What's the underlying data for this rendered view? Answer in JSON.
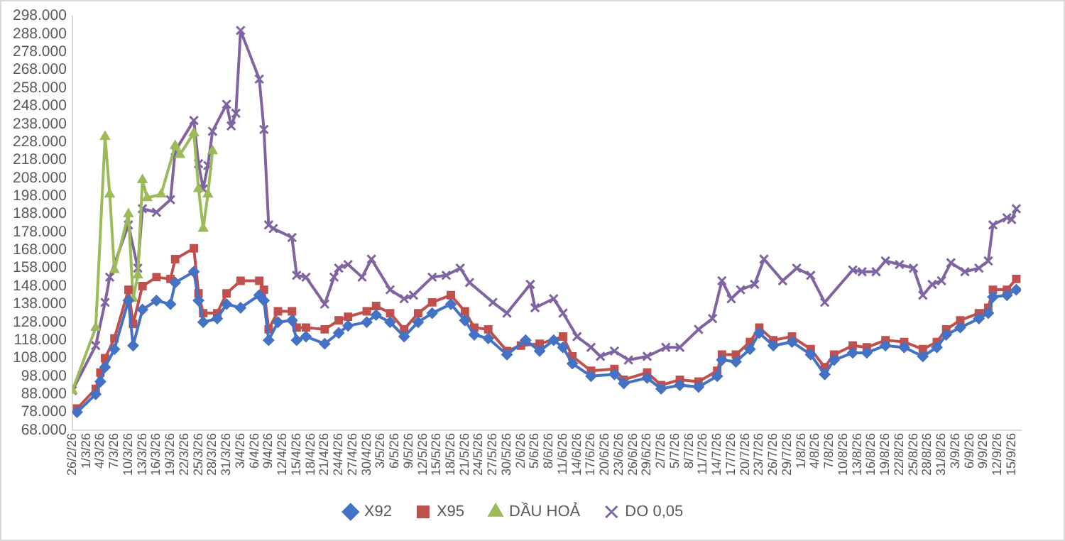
{
  "chart_data": {
    "type": "line",
    "legend": "bottom",
    "grid": false,
    "xlim": [
      "--02-26",
      "--09-17"
    ],
    "xticks": [
      {
        "value": "--02-26",
        "label": "26/2/26"
      },
      {
        "value": "--03-01",
        "label": "1/3/26"
      },
      {
        "value": "--03-04",
        "label": "4/3/26"
      },
      {
        "value": "--03-07",
        "label": "7/3/26"
      },
      {
        "value": "--03-10",
        "label": "10/3/26"
      },
      {
        "value": "--03-13",
        "label": "13/3/26"
      },
      {
        "value": "--03-16",
        "label": "16/3/26"
      },
      {
        "value": "--03-19",
        "label": "19/3/26"
      },
      {
        "value": "--03-22",
        "label": "22/3/26"
      },
      {
        "value": "--03-25",
        "label": "25/3/26"
      },
      {
        "value": "--03-28",
        "label": "28/3/26"
      },
      {
        "value": "--03-31",
        "label": "31/3/26"
      },
      {
        "value": "--04-03",
        "label": "3/4/26"
      },
      {
        "value": "--04-06",
        "label": "6/4/26"
      },
      {
        "value": "--04-09",
        "label": "9/4/26"
      },
      {
        "value": "--04-12",
        "label": "12/4/26"
      },
      {
        "value": "--04-15",
        "label": "15/4/26"
      },
      {
        "value": "--04-18",
        "label": "18/4/26"
      },
      {
        "value": "--04-21",
        "label": "21/4/26"
      },
      {
        "value": "--04-24",
        "label": "24/4/26"
      },
      {
        "value": "--04-27",
        "label": "27/4/26"
      },
      {
        "value": "--04-30",
        "label": "30/4/26"
      },
      {
        "value": "--05-03",
        "label": "3/5/26"
      },
      {
        "value": "--05-06",
        "label": "6/5/26"
      },
      {
        "value": "--05-09",
        "label": "9/5/26"
      },
      {
        "value": "--05-12",
        "label": "12/5/26"
      },
      {
        "value": "--05-15",
        "label": "15/5/26"
      },
      {
        "value": "--05-18",
        "label": "18/5/26"
      },
      {
        "value": "--05-21",
        "label": "21/5/26"
      },
      {
        "value": "--05-24",
        "label": "24/5/26"
      },
      {
        "value": "--05-27",
        "label": "27/5/26"
      },
      {
        "value": "--05-30",
        "label": "30/5/26"
      },
      {
        "value": "--06-02",
        "label": "2/6/26"
      },
      {
        "value": "--06-05",
        "label": "5/6/26"
      },
      {
        "value": "--06-08",
        "label": "8/6/26"
      },
      {
        "value": "--06-11",
        "label": "11/6/26"
      },
      {
        "value": "--06-14",
        "label": "14/6/26"
      },
      {
        "value": "--06-17",
        "label": "17/6/26"
      },
      {
        "value": "--06-20",
        "label": "20/6/26"
      },
      {
        "value": "--06-23",
        "label": "23/6/26"
      },
      {
        "value": "--06-26",
        "label": "26/6/26"
      },
      {
        "value": "--06-29",
        "label": "29/6/26"
      },
      {
        "value": "--07-02",
        "label": "2/7/26"
      },
      {
        "value": "--07-05",
        "label": "5/7/26"
      },
      {
        "value": "--07-08",
        "label": "8/7/26"
      },
      {
        "value": "--07-11",
        "label": "11/7/26"
      },
      {
        "value": "--07-14",
        "label": "14/7/26"
      },
      {
        "value": "--07-17",
        "label": "17/7/26"
      },
      {
        "value": "--07-20",
        "label": "20/7/26"
      },
      {
        "value": "--07-23",
        "label": "23/7/26"
      },
      {
        "value": "--07-26",
        "label": "26/7/26"
      },
      {
        "value": "--07-29",
        "label": "29/7/26"
      },
      {
        "value": "--08-01",
        "label": "1/8/26"
      },
      {
        "value": "--08-04",
        "label": "4/8/26"
      },
      {
        "value": "--08-07",
        "label": "7/8/26"
      },
      {
        "value": "--08-10",
        "label": "10/8/26"
      },
      {
        "value": "--08-13",
        "label": "13/8/26"
      },
      {
        "value": "--08-16",
        "label": "16/8/26"
      },
      {
        "value": "--08-19",
        "label": "19/8/26"
      },
      {
        "value": "--08-22",
        "label": "22/8/26"
      },
      {
        "value": "--08-25",
        "label": "25/8/26"
      },
      {
        "value": "--08-28",
        "label": "28/8/26"
      },
      {
        "value": "--08-31",
        "label": "31/8/26"
      },
      {
        "value": "--09-03",
        "label": "3/9/26"
      },
      {
        "value": "--09-06",
        "label": "6/9/26"
      },
      {
        "value": "--09-09",
        "label": "9/9/26"
      },
      {
        "value": "--09-12",
        "label": "12/9/26"
      },
      {
        "value": "--09-15",
        "label": "15/9/26"
      }
    ],
    "ylim": [
      68000,
      298000
    ],
    "yticks": [
      {
        "value": 68000,
        "label": "68.000"
      },
      {
        "value": 78000,
        "label": "78.000"
      },
      {
        "value": 88000,
        "label": "88.000"
      },
      {
        "value": 98000,
        "label": "98.000"
      },
      {
        "value": 108000,
        "label": "108.000"
      },
      {
        "value": 118000,
        "label": "118.000"
      },
      {
        "value": 128000,
        "label": "128.000"
      },
      {
        "value": 138000,
        "label": "138.000"
      },
      {
        "value": 148000,
        "label": "148.000"
      },
      {
        "value": 158000,
        "label": "158.000"
      },
      {
        "value": 168000,
        "label": "168.000"
      },
      {
        "value": 178000,
        "label": "178.000"
      },
      {
        "value": 188000,
        "label": "188.000"
      },
      {
        "value": 198000,
        "label": "198.000"
      },
      {
        "value": 208000,
        "label": "208.000"
      },
      {
        "value": 218000,
        "label": "218.000"
      },
      {
        "value": 228000,
        "label": "228.000"
      },
      {
        "value": 238000,
        "label": "238.000"
      },
      {
        "value": 248000,
        "label": "248.000"
      },
      {
        "value": 258000,
        "label": "258.000"
      },
      {
        "value": 268000,
        "label": "268.000"
      },
      {
        "value": 278000,
        "label": "278.000"
      },
      {
        "value": 288000,
        "label": "288.000"
      },
      {
        "value": 298000,
        "label": "298.000"
      }
    ],
    "series": [
      {
        "name": "X92",
        "color": "#4472c4",
        "marker": "diamond",
        "x": [
          "--02-27",
          "--03-03",
          "--03-04",
          "--03-05",
          "--03-07",
          "--03-10",
          "--03-11",
          "--03-13",
          "--03-16",
          "--03-19",
          "--03-20",
          "--03-24",
          "--03-25",
          "--03-26",
          "--03-29",
          "--03-31",
          "--04-03",
          "--04-07",
          "--04-08",
          "--04-09",
          "--04-11",
          "--04-14",
          "--04-15",
          "--04-17",
          "--04-21",
          "--04-24",
          "--04-26",
          "--04-30",
          "--05-02",
          "--05-05",
          "--05-08",
          "--05-11",
          "--05-14",
          "--05-18",
          "--05-21",
          "--05-23",
          "--05-26",
          "--05-30",
          "--06-03",
          "--06-06",
          "--06-09",
          "--06-11",
          "--06-13",
          "--06-17",
          "--06-22",
          "--06-24",
          "--06-29",
          "--07-02",
          "--07-06",
          "--07-10",
          "--07-14",
          "--07-15",
          "--07-18",
          "--07-21",
          "--07-23",
          "--07-26",
          "--07-30",
          "--08-03",
          "--08-06",
          "--08-08",
          "--08-12",
          "--08-15",
          "--08-19",
          "--08-23",
          "--08-27",
          "--08-30",
          "--09-01",
          "--09-04",
          "--09-08",
          "--09-10",
          "--09-11",
          "--09-14",
          "--09-16"
        ],
        "values": [
          78000,
          88000,
          95000,
          103000,
          113000,
          140000,
          115000,
          135000,
          140000,
          138000,
          150000,
          156000,
          140000,
          128000,
          130000,
          138000,
          136000,
          143000,
          140000,
          118000,
          128000,
          129000,
          118000,
          120000,
          116000,
          122000,
          126000,
          128000,
          132000,
          128000,
          120000,
          128000,
          133000,
          138000,
          129000,
          121000,
          119000,
          110000,
          118000,
          112000,
          118000,
          114000,
          105000,
          98000,
          99000,
          94000,
          97000,
          91000,
          93000,
          92000,
          98000,
          107000,
          106000,
          113000,
          122000,
          115000,
          117000,
          110000,
          99000,
          107000,
          111000,
          111000,
          115000,
          114000,
          109000,
          114000,
          121000,
          125000,
          130000,
          133000,
          142000,
          143000,
          146000
        ]
      },
      {
        "name": "X95",
        "color": "#c0504d",
        "marker": "square",
        "x": [
          "--02-27",
          "--03-03",
          "--03-04",
          "--03-05",
          "--03-07",
          "--03-10",
          "--03-11",
          "--03-13",
          "--03-16",
          "--03-19",
          "--03-20",
          "--03-24",
          "--03-25",
          "--03-26",
          "--03-29",
          "--03-31",
          "--04-03",
          "--04-07",
          "--04-08",
          "--04-09",
          "--04-11",
          "--04-14",
          "--04-15",
          "--04-17",
          "--04-21",
          "--04-24",
          "--04-26",
          "--04-30",
          "--05-02",
          "--05-05",
          "--05-08",
          "--05-11",
          "--05-14",
          "--05-18",
          "--05-21",
          "--05-23",
          "--05-26",
          "--05-30",
          "--06-02",
          "--06-06",
          "--06-11",
          "--06-13",
          "--06-17",
          "--06-22",
          "--06-24",
          "--06-29",
          "--07-02",
          "--07-06",
          "--07-10",
          "--07-14",
          "--07-15",
          "--07-18",
          "--07-21",
          "--07-23",
          "--07-26",
          "--07-30",
          "--08-03",
          "--08-06",
          "--08-08",
          "--08-12",
          "--08-15",
          "--08-19",
          "--08-23",
          "--08-27",
          "--08-30",
          "--09-01",
          "--09-04",
          "--09-08",
          "--09-10",
          "--09-11",
          "--09-14",
          "--09-16"
        ],
        "values": [
          80000,
          91000,
          100000,
          108000,
          119000,
          146000,
          127000,
          148000,
          153000,
          152000,
          163000,
          169000,
          144000,
          133000,
          133000,
          144000,
          151000,
          151000,
          146000,
          124000,
          134000,
          134000,
          125000,
          125000,
          124000,
          129000,
          131000,
          134000,
          137000,
          133000,
          124000,
          133000,
          139000,
          143000,
          134000,
          125000,
          124000,
          112000,
          115000,
          116000,
          120000,
          109000,
          101000,
          102000,
          96000,
          100000,
          93000,
          96000,
          95000,
          101000,
          110000,
          110000,
          117000,
          125000,
          118000,
          120000,
          113000,
          103000,
          110000,
          115000,
          114000,
          118000,
          117000,
          113000,
          117000,
          124000,
          129000,
          133000,
          136000,
          146000,
          146000,
          152000
        ]
      },
      {
        "name": "DẦU HOẢ",
        "color": "#9bbb59",
        "marker": "triangle",
        "x": [
          "--02-26",
          "--03-03",
          "--03-05",
          "--03-06",
          "--03-07",
          "--03-10",
          "--03-11",
          "--03-12",
          "--03-13",
          "--03-14",
          "--03-17",
          "--03-20",
          "--03-21",
          "--03-24",
          "--03-25",
          "--03-26",
          "--03-27",
          "--03-28"
        ],
        "values": [
          90000,
          125000,
          231000,
          199000,
          157000,
          188000,
          141000,
          154000,
          207000,
          197000,
          199000,
          226000,
          221000,
          233000,
          202000,
          180000,
          199000,
          223000
        ]
      },
      {
        "name": "DO 0,05",
        "color": "#8064a2",
        "marker": "cross",
        "x": [
          "--02-26",
          "--03-03",
          "--03-05",
          "--03-06",
          "--03-10",
          "--03-12",
          "--03-13",
          "--03-16",
          "--03-19",
          "--03-20",
          "--03-24",
          "--03-25",
          "--03-26",
          "--03-27",
          "--03-28",
          "--03-31",
          "--04-01",
          "--04-02",
          "--04-03",
          "--04-07",
          "--04-08",
          "--04-09",
          "--04-10",
          "--04-14",
          "--04-15",
          "--04-17",
          "--04-21",
          "--04-23",
          "--04-24",
          "--04-26",
          "--04-29",
          "--05-01",
          "--05-05",
          "--05-08",
          "--05-10",
          "--05-14",
          "--05-17",
          "--05-20",
          "--05-22",
          "--05-27",
          "--05-30",
          "--06-04",
          "--06-05",
          "--06-09",
          "--06-11",
          "--06-14",
          "--06-17",
          "--06-19",
          "--06-22",
          "--06-25",
          "--06-29",
          "--07-03",
          "--07-06",
          "--07-10",
          "--07-13",
          "--07-15",
          "--07-17",
          "--07-19",
          "--07-22",
          "--07-24",
          "--07-28",
          "--07-31",
          "--08-03",
          "--08-06",
          "--08-12",
          "--08-14",
          "--08-17",
          "--08-19",
          "--08-22",
          "--08-25",
          "--08-27",
          "--08-29",
          "--08-31",
          "--09-02",
          "--09-05",
          "--09-08",
          "--09-10",
          "--09-11",
          "--09-14",
          "--09-15",
          "--09-16"
        ],
        "values": [
          90000,
          115000,
          139000,
          153000,
          182000,
          158000,
          191000,
          189000,
          196000,
          223000,
          240000,
          216000,
          202000,
          215000,
          234000,
          249000,
          237000,
          244000,
          290000,
          263000,
          235000,
          182000,
          180000,
          175000,
          154000,
          153000,
          138000,
          153000,
          158000,
          160000,
          153000,
          163000,
          146000,
          141000,
          143000,
          153000,
          154000,
          158000,
          150000,
          139000,
          133000,
          149000,
          136000,
          141000,
          133000,
          120000,
          114000,
          109000,
          112000,
          107000,
          109000,
          114000,
          114000,
          124000,
          130000,
          151000,
          141000,
          146000,
          149000,
          163000,
          151000,
          158000,
          154000,
          139000,
          157000,
          156000,
          156000,
          162000,
          160000,
          158000,
          143000,
          149000,
          151000,
          161000,
          156000,
          158000,
          162000,
          182000,
          186000,
          185000,
          191000
        ]
      }
    ]
  }
}
